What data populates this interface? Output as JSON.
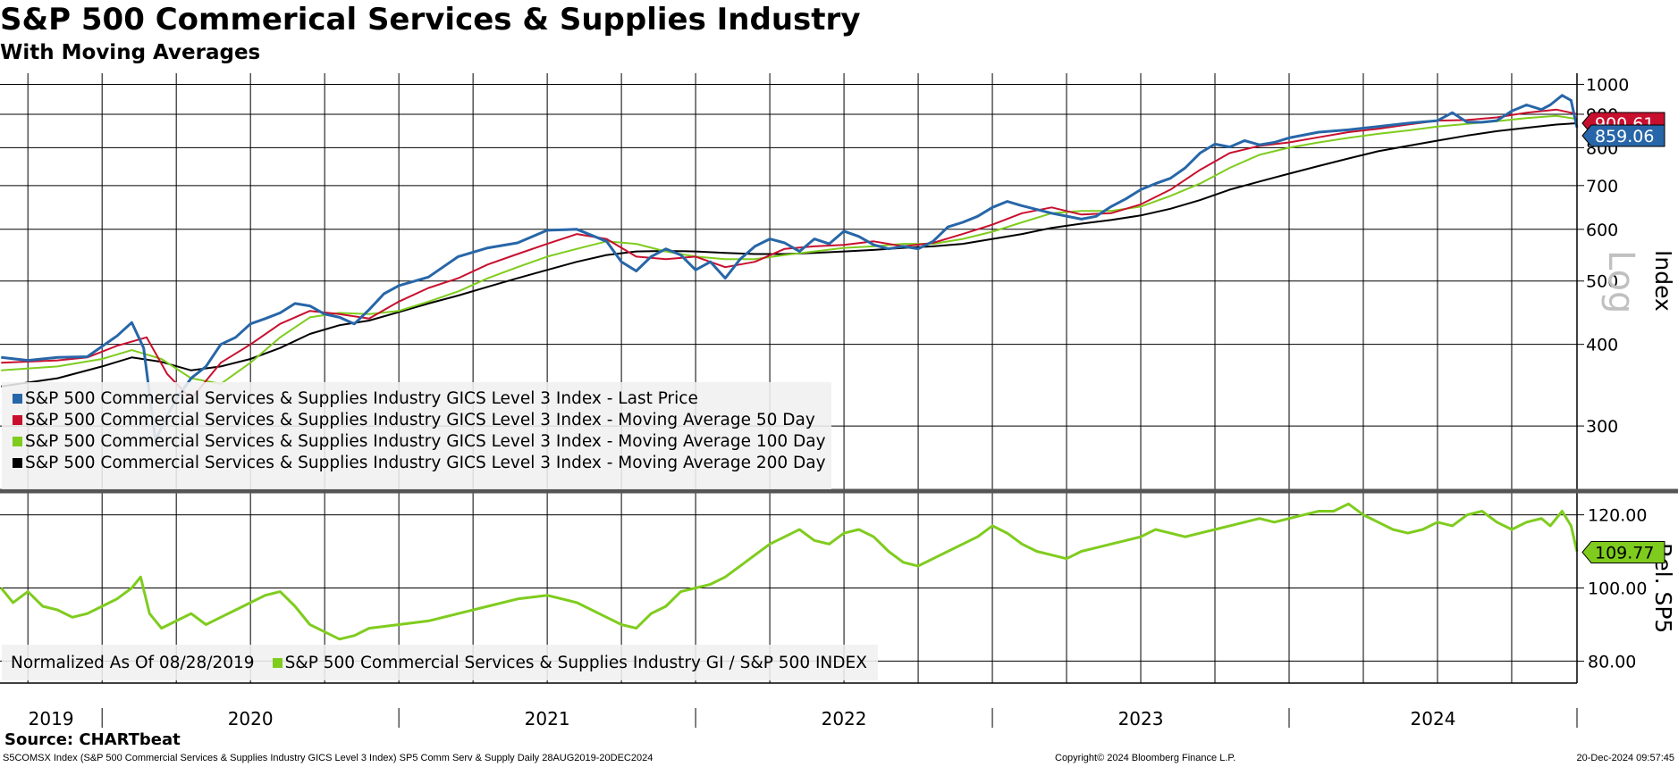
{
  "title": "S&P 500 Commerical Services & Supplies Industry",
  "subtitle": "With Moving Averages",
  "source": "Source: CHARTbeat",
  "footer": {
    "left": "S5COMSX Index (S&P 500 Commercial Services & Supplies Industry GICS Level 3 Index) SP5 Comm Serv & Supply  Daily 28AUG2019-20DEC2024",
    "center": "Copyright© 2024 Bloomberg Finance L.P.",
    "right": "20-Dec-2024 09:57:45"
  },
  "colors": {
    "last_price": "#2766a8",
    "ma50": "#c8102e",
    "ma100": "#7fcc1e",
    "ma200": "#000000",
    "relative": "#7fcc1e"
  },
  "chart_data": [
    {
      "type": "line",
      "name": "price-panel",
      "scale": "log",
      "ylabel": "Index",
      "scale_label": "Log",
      "ylim": [
        240,
        1040
      ],
      "yticks": [
        300,
        400,
        500,
        600,
        700,
        800,
        900,
        1000
      ],
      "xlim": [
        2019.656,
        2024.97
      ],
      "x_tick_labels": [
        "2019",
        "2020",
        "2021",
        "2022",
        "2023",
        "2024"
      ],
      "last_value_labels": [
        {
          "text": "900.61",
          "series": "Moving Average 50 Day"
        },
        {
          "text": "859.06",
          "series": "Last Price"
        }
      ],
      "legend": [
        "S&P 500 Commercial Services & Supplies Industry GICS Level 3 Index - Last Price",
        "S&P 500 Commercial Services & Supplies Industry GICS Level 3 Index - Moving Average 50 Day",
        "S&P 500 Commercial Services & Supplies Industry GICS Level 3 Index - Moving Average 100 Day",
        "S&P 500 Commercial Services & Supplies Industry GICS Level 3 Index - Moving Average 200 Day"
      ],
      "series": [
        {
          "name": "Last Price",
          "x": [
            2019.66,
            2019.75,
            2019.85,
            2019.95,
            2020.05,
            2020.1,
            2020.14,
            2020.18,
            2020.21,
            2020.25,
            2020.3,
            2020.35,
            2020.4,
            2020.45,
            2020.5,
            2020.55,
            2020.6,
            2020.65,
            2020.7,
            2020.75,
            2020.8,
            2020.85,
            2020.9,
            2020.95,
            2021.0,
            2021.1,
            2021.2,
            2021.3,
            2021.4,
            2021.5,
            2021.6,
            2021.7,
            2021.75,
            2021.8,
            2021.85,
            2021.9,
            2021.95,
            2022.0,
            2022.05,
            2022.1,
            2022.15,
            2022.2,
            2022.25,
            2022.3,
            2022.35,
            2022.4,
            2022.45,
            2022.5,
            2022.55,
            2022.6,
            2022.65,
            2022.7,
            2022.75,
            2022.8,
            2022.85,
            2022.9,
            2022.95,
            2023.0,
            2023.05,
            2023.1,
            2023.2,
            2023.3,
            2023.35,
            2023.4,
            2023.45,
            2023.5,
            2023.55,
            2023.6,
            2023.65,
            2023.7,
            2023.75,
            2023.8,
            2023.85,
            2023.9,
            2023.95,
            2024.0,
            2024.1,
            2024.2,
            2024.3,
            2024.4,
            2024.5,
            2024.55,
            2024.6,
            2024.65,
            2024.7,
            2024.75,
            2024.8,
            2024.85,
            2024.88,
            2024.92,
            2024.95,
            2024.97
          ],
          "y": [
            382,
            378,
            382,
            383,
            412,
            432,
            395,
            285,
            305,
            330,
            355,
            370,
            400,
            410,
            430,
            438,
            447,
            462,
            458,
            445,
            440,
            430,
            452,
            478,
            492,
            507,
            545,
            562,
            572,
            598,
            600,
            575,
            535,
            518,
            545,
            560,
            548,
            520,
            535,
            505,
            540,
            565,
            580,
            572,
            555,
            580,
            570,
            596,
            585,
            568,
            560,
            565,
            560,
            575,
            605,
            615,
            628,
            648,
            662,
            652,
            635,
            622,
            628,
            650,
            668,
            690,
            705,
            718,
            745,
            785,
            810,
            802,
            820,
            808,
            815,
            828,
            845,
            852,
            862,
            872,
            880,
            905,
            875,
            875,
            880,
            910,
            930,
            915,
            930,
            962,
            945,
            859
          ]
        },
        {
          "name": "Moving Average 50 Day",
          "x": [
            2019.66,
            2019.85,
            2019.95,
            2020.05,
            2020.15,
            2020.22,
            2020.3,
            2020.4,
            2020.5,
            2020.6,
            2020.7,
            2020.8,
            2020.9,
            2021.0,
            2021.1,
            2021.2,
            2021.3,
            2021.4,
            2021.5,
            2021.6,
            2021.7,
            2021.8,
            2021.9,
            2022.0,
            2022.1,
            2022.2,
            2022.3,
            2022.4,
            2022.5,
            2022.6,
            2022.7,
            2022.8,
            2022.9,
            2023.0,
            2023.1,
            2023.2,
            2023.3,
            2023.4,
            2023.5,
            2023.6,
            2023.7,
            2023.8,
            2023.9,
            2024.0,
            2024.1,
            2024.2,
            2024.3,
            2024.4,
            2024.5,
            2024.6,
            2024.7,
            2024.8,
            2024.9,
            2024.97
          ],
          "y": [
            375,
            378,
            382,
            398,
            410,
            360,
            330,
            375,
            400,
            430,
            450,
            445,
            438,
            465,
            488,
            505,
            530,
            550,
            570,
            590,
            580,
            545,
            540,
            545,
            525,
            535,
            560,
            565,
            568,
            575,
            565,
            572,
            590,
            610,
            635,
            648,
            632,
            635,
            655,
            690,
            740,
            785,
            805,
            815,
            830,
            845,
            855,
            868,
            880,
            882,
            890,
            905,
            915,
            900.61
          ]
        },
        {
          "name": "Moving Average 100 Day",
          "x": [
            2019.66,
            2019.85,
            2020.0,
            2020.1,
            2020.2,
            2020.3,
            2020.4,
            2020.5,
            2020.6,
            2020.7,
            2020.8,
            2020.9,
            2021.0,
            2021.1,
            2021.2,
            2021.3,
            2021.4,
            2021.5,
            2021.6,
            2021.7,
            2021.8,
            2021.9,
            2022.0,
            2022.1,
            2022.2,
            2022.3,
            2022.4,
            2022.5,
            2022.6,
            2022.7,
            2022.8,
            2022.9,
            2023.0,
            2023.1,
            2023.2,
            2023.3,
            2023.4,
            2023.5,
            2023.6,
            2023.7,
            2023.8,
            2023.9,
            2024.0,
            2024.1,
            2024.2,
            2024.3,
            2024.4,
            2024.5,
            2024.6,
            2024.7,
            2024.8,
            2024.9,
            2024.97
          ],
          "y": [
            365,
            370,
            380,
            392,
            380,
            355,
            348,
            375,
            410,
            440,
            447,
            445,
            450,
            465,
            482,
            505,
            525,
            545,
            560,
            575,
            570,
            555,
            545,
            540,
            540,
            548,
            555,
            562,
            565,
            570,
            570,
            580,
            595,
            615,
            635,
            640,
            640,
            650,
            675,
            705,
            745,
            780,
            800,
            815,
            828,
            840,
            850,
            862,
            870,
            878,
            888,
            895,
            885
          ]
        },
        {
          "name": "Moving Average 200 Day",
          "x": [
            2019.66,
            2019.85,
            2020.0,
            2020.1,
            2020.2,
            2020.3,
            2020.4,
            2020.5,
            2020.6,
            2020.7,
            2020.8,
            2020.9,
            2021.0,
            2021.1,
            2021.2,
            2021.3,
            2021.4,
            2021.5,
            2021.6,
            2021.7,
            2021.8,
            2021.9,
            2022.0,
            2022.1,
            2022.2,
            2022.3,
            2022.4,
            2022.5,
            2022.6,
            2022.7,
            2022.8,
            2022.9,
            2023.0,
            2023.1,
            2023.2,
            2023.3,
            2023.4,
            2023.5,
            2023.6,
            2023.7,
            2023.8,
            2023.9,
            2024.0,
            2024.1,
            2024.2,
            2024.3,
            2024.4,
            2024.5,
            2024.6,
            2024.7,
            2024.8,
            2024.9,
            2024.97
          ],
          "y": [
            345,
            355,
            370,
            382,
            376,
            365,
            370,
            380,
            395,
            415,
            428,
            435,
            448,
            462,
            475,
            490,
            505,
            520,
            535,
            548,
            555,
            556,
            555,
            552,
            550,
            550,
            552,
            555,
            558,
            562,
            565,
            570,
            580,
            590,
            603,
            612,
            620,
            630,
            645,
            665,
            690,
            710,
            730,
            750,
            770,
            790,
            805,
            820,
            835,
            848,
            858,
            868,
            872
          ]
        }
      ]
    },
    {
      "type": "line",
      "name": "relative-panel",
      "ylabel": "Rel. SP5",
      "ylim": [
        74,
        126
      ],
      "yticks": [
        80,
        100,
        120
      ],
      "ytick_labels": [
        "80.00",
        "100.00",
        "120.00"
      ],
      "xlim": [
        2019.656,
        2024.97
      ],
      "last_value_labels": [
        {
          "text": "109.77",
          "series": "S&P 500 Commercial Services & Supplies Industry GI / S&P 500 INDEX"
        }
      ],
      "legend_note": "Normalized As Of 08/28/2019",
      "legend": [
        "S&P 500 Commercial Services & Supplies Industry GI / S&P 500 INDEX"
      ],
      "series": [
        {
          "name": "S&P 500 Commercial Services & Supplies Industry GI / S&P 500 INDEX",
          "x": [
            2019.66,
            2019.7,
            2019.75,
            2019.8,
            2019.85,
            2019.9,
            2019.95,
            2020.0,
            2020.05,
            2020.1,
            2020.13,
            2020.16,
            2020.2,
            2020.25,
            2020.3,
            2020.35,
            2020.4,
            2020.45,
            2020.5,
            2020.55,
            2020.6,
            2020.65,
            2020.7,
            2020.75,
            2020.8,
            2020.85,
            2020.9,
            2021.0,
            2021.1,
            2021.2,
            2021.3,
            2021.4,
            2021.5,
            2021.6,
            2021.7,
            2021.75,
            2021.8,
            2021.85,
            2021.9,
            2021.95,
            2022.0,
            2022.05,
            2022.1,
            2022.15,
            2022.2,
            2022.25,
            2022.3,
            2022.35,
            2022.4,
            2022.45,
            2022.5,
            2022.55,
            2022.6,
            2022.65,
            2022.7,
            2022.75,
            2022.8,
            2022.85,
            2022.9,
            2022.95,
            2023.0,
            2023.05,
            2023.1,
            2023.15,
            2023.2,
            2023.25,
            2023.3,
            2023.35,
            2023.4,
            2023.45,
            2023.5,
            2023.55,
            2023.6,
            2023.65,
            2023.7,
            2023.75,
            2023.8,
            2023.85,
            2023.9,
            2023.95,
            2024.0,
            2024.05,
            2024.1,
            2024.15,
            2024.2,
            2024.25,
            2024.3,
            2024.35,
            2024.4,
            2024.45,
            2024.5,
            2024.55,
            2024.6,
            2024.65,
            2024.7,
            2024.75,
            2024.8,
            2024.85,
            2024.88,
            2024.92,
            2024.95,
            2024.97
          ],
          "y": [
            100,
            96,
            99,
            95,
            94,
            92,
            93,
            95,
            97,
            100,
            103,
            93,
            89,
            91,
            93,
            90,
            92,
            94,
            96,
            98,
            99,
            95,
            90,
            88,
            86,
            87,
            89,
            90,
            91,
            93,
            95,
            97,
            98,
            96,
            92,
            90,
            89,
            93,
            95,
            99,
            100,
            101,
            103,
            106,
            109,
            112,
            114,
            116,
            113,
            112,
            115,
            116,
            114,
            110,
            107,
            106,
            108,
            110,
            112,
            114,
            117,
            115,
            112,
            110,
            109,
            108,
            110,
            111,
            112,
            113,
            114,
            116,
            115,
            114,
            115,
            116,
            117,
            118,
            119,
            118,
            119,
            120,
            121,
            121,
            123,
            120,
            118,
            116,
            115,
            116,
            118,
            117,
            120,
            121,
            118,
            116,
            118,
            119,
            117,
            121,
            117,
            110
          ]
        }
      ]
    }
  ]
}
